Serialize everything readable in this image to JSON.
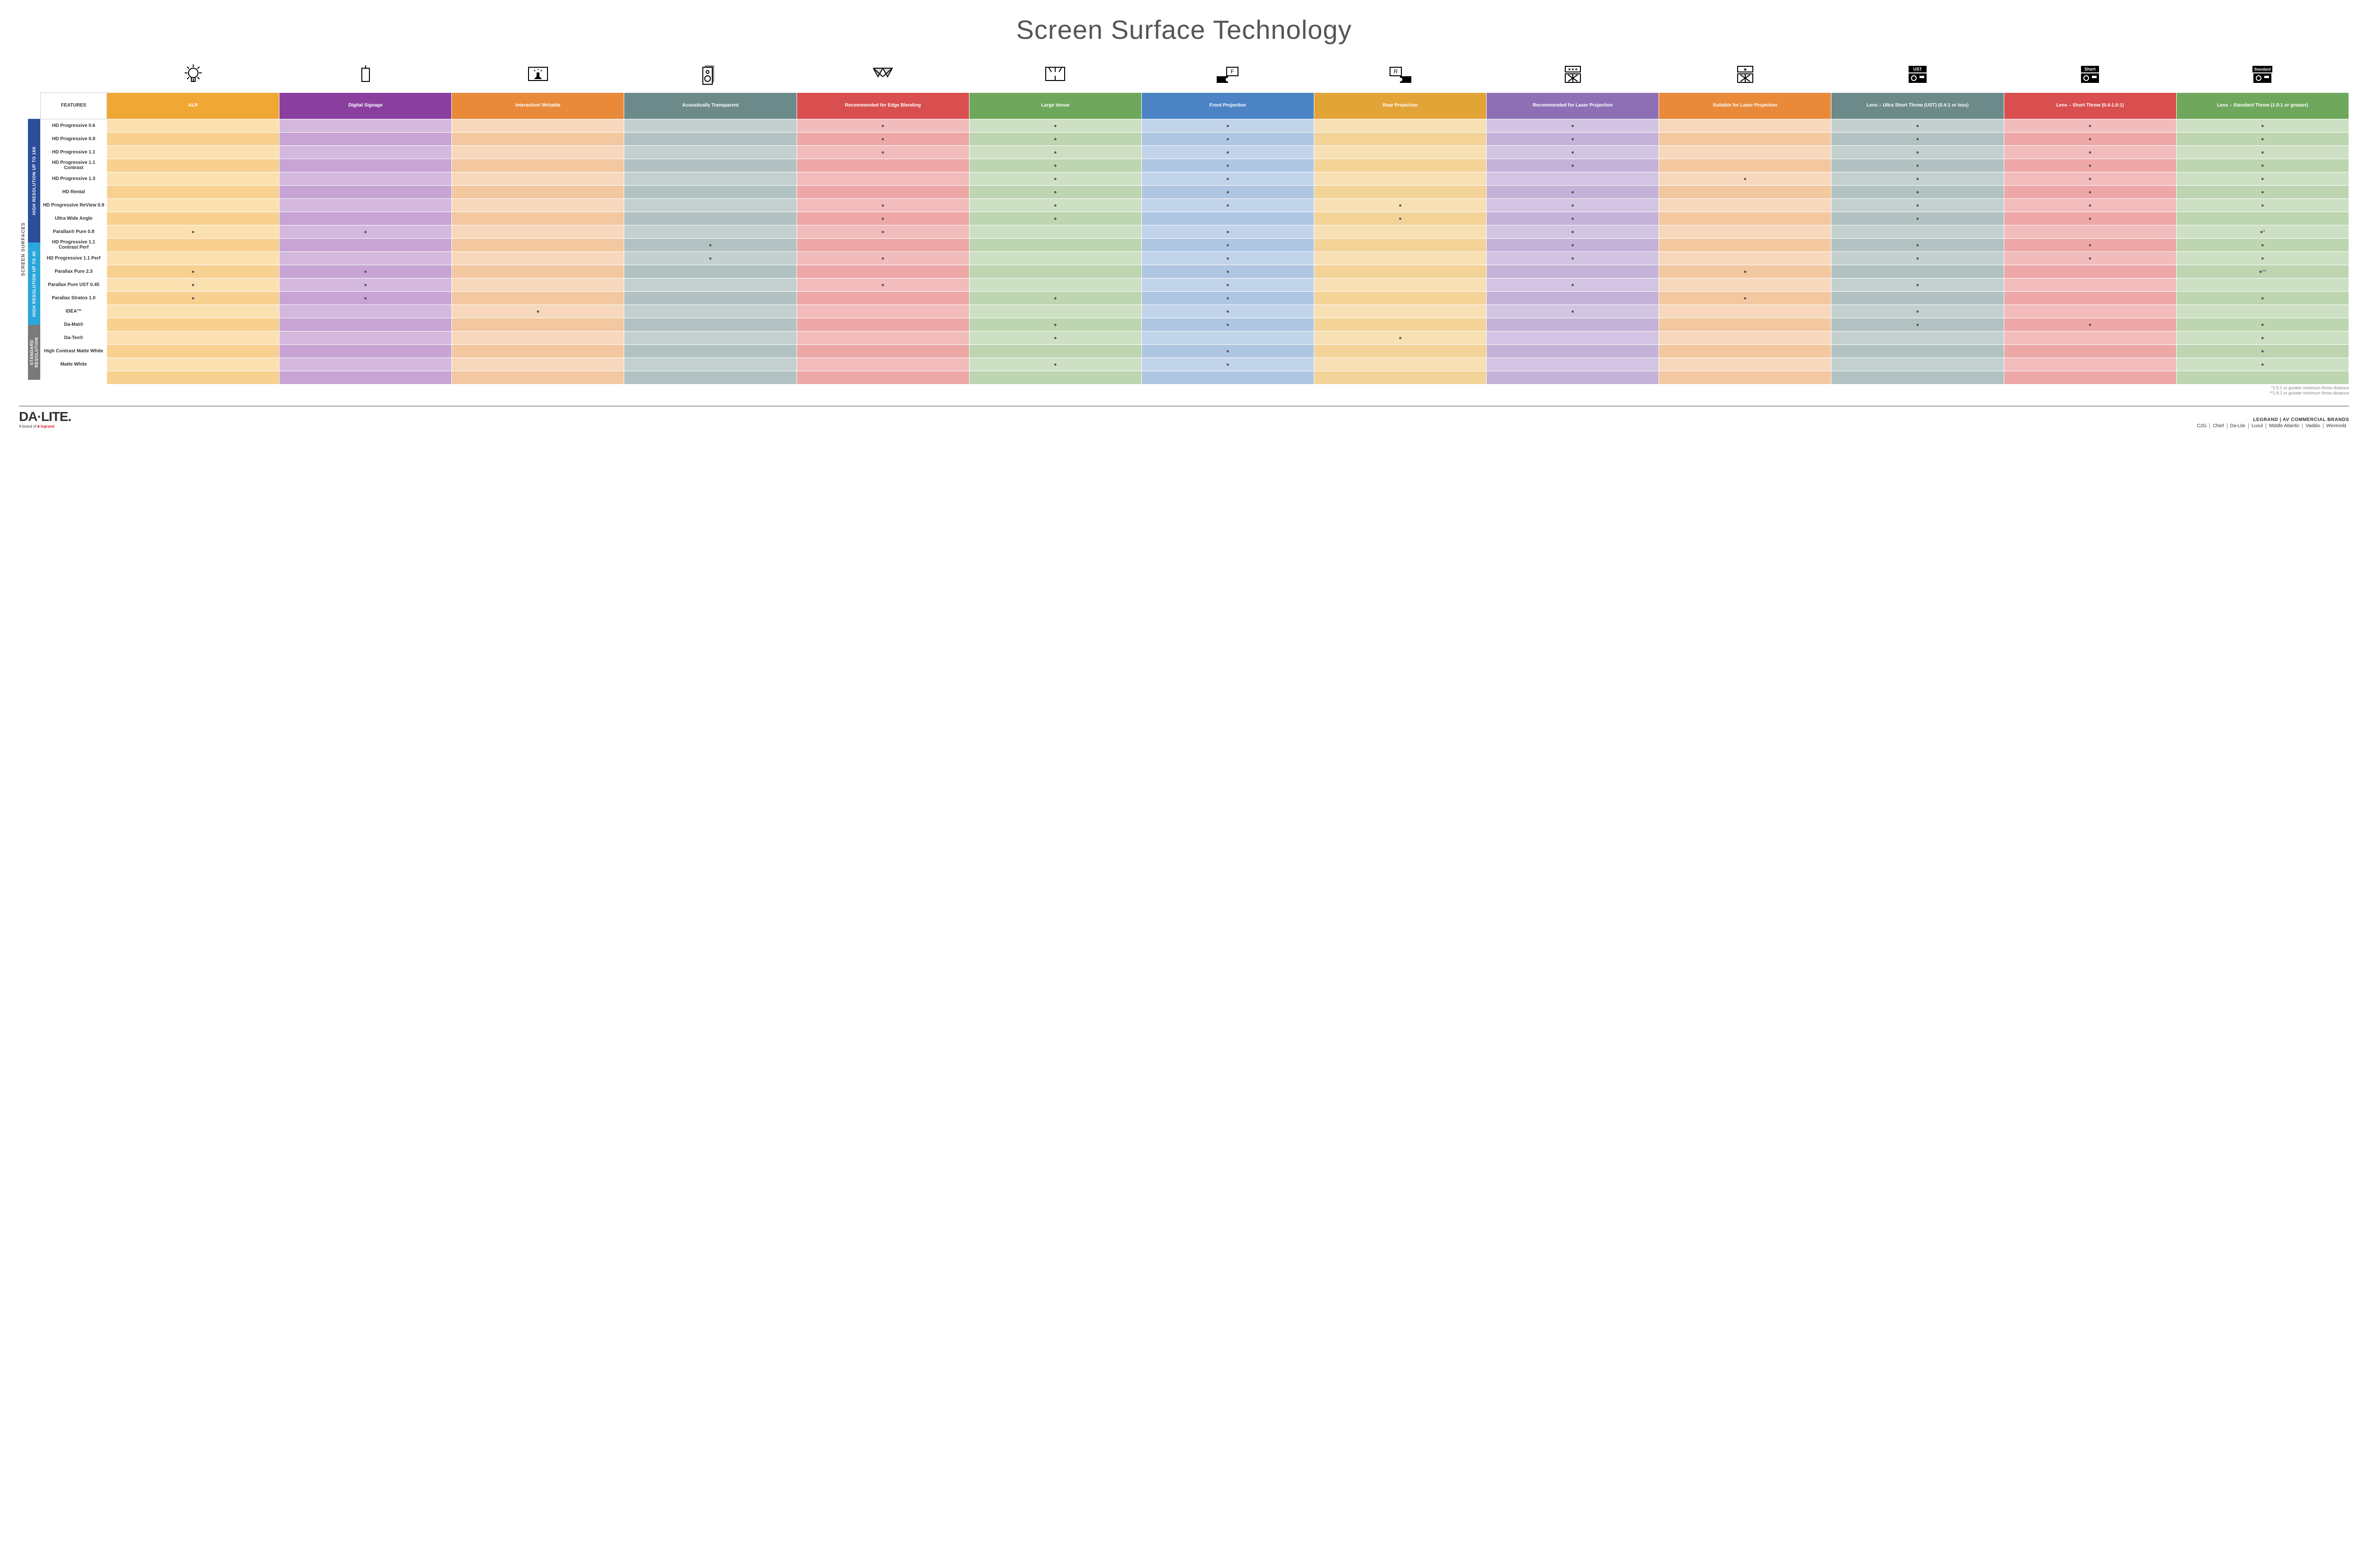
{
  "title": "Screen Surface Technology",
  "side_label": "SCREEN SURFACES",
  "groups": [
    {
      "name": "HIGH RESOLUTION UP TO 16K",
      "bg": "#2b4f9a",
      "rows": 9
    },
    {
      "name": "HIGH RESOLUTION UP TO 4K",
      "bg": "#2aa7d8",
      "rows": 6
    },
    {
      "name": "STANDARD RESOLUTION",
      "bg": "#7a7a7a",
      "rows": 4
    }
  ],
  "columns": [
    {
      "key": "features",
      "label": "FEATURES",
      "bg": "#ffffff",
      "icon": ""
    },
    {
      "key": "alr",
      "label": "ALR",
      "bg": "#f0a733",
      "icon": "bulb"
    },
    {
      "key": "signage",
      "label": "Digital Signage",
      "bg": "#8a3f9e",
      "icon": "signage"
    },
    {
      "key": "interactive",
      "label": "Interactive/ Writable",
      "bg": "#e88a3a",
      "icon": "touch"
    },
    {
      "key": "acoustic",
      "label": "Acoustically Transparent",
      "bg": "#6d8a8a",
      "icon": "speaker"
    },
    {
      "key": "blend",
      "label": "Recommended for Edge Blending",
      "bg": "#d94e4e",
      "icon": "blend"
    },
    {
      "key": "large",
      "label": "Large Venue",
      "bg": "#6fa85c",
      "icon": "venue"
    },
    {
      "key": "front",
      "label": "Front Projection",
      "bg": "#4b83c4",
      "icon": "front"
    },
    {
      "key": "rear",
      "label": "Rear Projection",
      "bg": "#e2a437",
      "icon": "rear"
    },
    {
      "key": "laser_rec",
      "label": "Recommended for Laser Projection",
      "bg": "#8e6fb5",
      "icon": "laser_rec"
    },
    {
      "key": "laser_suit",
      "label": "Suitable for Laser Projection",
      "bg": "#e88a3a",
      "icon": "laser_suit"
    },
    {
      "key": "ust",
      "label": "Lens – Ultra Short Throw (UST) (0.4:1 or less)",
      "bg": "#6d8a8a",
      "icon": "ust"
    },
    {
      "key": "short",
      "label": "Lens – Short Throw (0.4-1.0:1)",
      "bg": "#d94e4e",
      "icon": "short"
    },
    {
      "key": "std",
      "label": "Lens – Standard Throw (1.0:1 or greater)",
      "bg": "#6fa85c",
      "icon": "standard"
    }
  ],
  "tints": {
    "alr": [
      "#fbe0b0",
      "#f8d090"
    ],
    "signage": [
      "#d4b8dd",
      "#c7a4d3"
    ],
    "interactive": [
      "#f7d8bd",
      "#f3c7a0"
    ],
    "acoustic": [
      "#c4d0d0",
      "#b2c2c2"
    ],
    "blend": [
      "#f2bcbc",
      "#eda7a7"
    ],
    "large": [
      "#cde0c3",
      "#bdd5b0"
    ],
    "front": [
      "#c2d4ea",
      "#aec6e2"
    ],
    "rear": [
      "#f7e0b4",
      "#f3d398"
    ],
    "laser_rec": [
      "#d2c4e2",
      "#c4b2d8"
    ],
    "laser_suit": [
      "#f7d8bd",
      "#f3c7a0"
    ],
    "ust": [
      "#c4d0d0",
      "#b2c2c2"
    ],
    "short": [
      "#f2bcbc",
      "#eda7a7"
    ],
    "std": [
      "#cde0c3",
      "#bdd5b0"
    ]
  },
  "rows": [
    {
      "label": "HD Progressive 0.6",
      "dots": {
        "blend": "●",
        "large": "●",
        "front": "●",
        "laser_rec": "●",
        "ust": "●",
        "short": "●",
        "std": "●"
      }
    },
    {
      "label": "HD Progressive 0.9",
      "dots": {
        "blend": "●",
        "large": "●",
        "front": "●",
        "laser_rec": "●",
        "ust": "●",
        "short": "●",
        "std": "●"
      }
    },
    {
      "label": "HD Progressive 1.1",
      "dots": {
        "blend": "●",
        "large": "●",
        "front": "●",
        "laser_rec": "●",
        "ust": "●",
        "short": "●",
        "std": "●"
      }
    },
    {
      "label": "HD Progressive 1.1 Contrast",
      "dots": {
        "large": "●",
        "front": "●",
        "laser_rec": "●",
        "ust": "●",
        "short": "●",
        "std": "●"
      }
    },
    {
      "label": "HD Progressive 1.3",
      "dots": {
        "large": "●",
        "front": "●",
        "laser_suit": "●",
        "ust": "●",
        "short": "●",
        "std": "●"
      }
    },
    {
      "label": "HD Rental",
      "dots": {
        "large": "●",
        "front": "●",
        "laser_rec": "●",
        "ust": "●",
        "short": "●",
        "std": "●"
      }
    },
    {
      "label": "HD Progressive ReView 0.9",
      "dots": {
        "blend": "●",
        "large": "●",
        "front": "●",
        "rear": "●",
        "laser_rec": "●",
        "ust": "●",
        "short": "●",
        "std": "●"
      }
    },
    {
      "label": "Ultra Wide Angle",
      "dots": {
        "blend": "●",
        "large": "●",
        "rear": "●",
        "laser_rec": "●",
        "ust": "●",
        "short": "●"
      }
    },
    {
      "label": "Parallax® Pure 0.8",
      "dots": {
        "alr": "●",
        "signage": "●",
        "blend": "●",
        "front": "●",
        "laser_rec": "●",
        "std": "●*"
      }
    },
    {
      "label": "HD Progressive 1.1 Contrast Perf",
      "dots": {
        "acoustic": "●",
        "front": "●",
        "laser_rec": "●",
        "ust": "●",
        "short": "●",
        "std": "●"
      }
    },
    {
      "label": "HD Progressive 1.1 Perf",
      "dots": {
        "acoustic": "●",
        "blend": "●",
        "front": "●",
        "laser_rec": "●",
        "ust": "●",
        "short": "●",
        "std": "●"
      }
    },
    {
      "label": "Parallax Pure 2.3",
      "dots": {
        "alr": "●",
        "signage": "●",
        "front": "●",
        "laser_suit": "●",
        "std": "●**"
      }
    },
    {
      "label": "Parallax Pure UST 0.45",
      "dots": {
        "alr": "●",
        "signage": "●",
        "blend": "●",
        "front": "●",
        "laser_rec": "●",
        "ust": "●"
      }
    },
    {
      "label": "Parallax Stratos 1.0",
      "dots": {
        "alr": "●",
        "signage": "●",
        "large": "●",
        "front": "●",
        "laser_suit": "●",
        "std": "●"
      }
    },
    {
      "label": "IDEA™",
      "dots": {
        "interactive": "●",
        "front": "●",
        "laser_rec": "●",
        "ust": "●"
      }
    },
    {
      "label": "Da-Mat®",
      "dots": {
        "large": "●",
        "front": "●",
        "ust": "●",
        "short": "●",
        "std": "●"
      }
    },
    {
      "label": "Da-Tex®",
      "dots": {
        "large": "●",
        "rear": "●",
        "std": "●"
      }
    },
    {
      "label": "High Contrast Matte White",
      "dots": {
        "front": "●",
        "std": "●"
      }
    },
    {
      "label": "Matte White",
      "dots": {
        "large": "●",
        "front": "●",
        "std": "●"
      }
    }
  ],
  "footnotes": [
    "*1.5:1 or greater minimum throw distance",
    "**1.8:1 or greater minimum throw distance"
  ],
  "footer": {
    "logo_main": "DA·LITE.",
    "logo_sub_prefix": "A brand of ",
    "logo_sub_brand": "legrand",
    "brands_title": "LEGRAND | AV COMMERCIAL BRANDS",
    "brands": [
      "C2G",
      "Chief",
      "Da-Lite",
      "Luxul",
      "Middle Atlantic",
      "Vaddio",
      "Wiremold"
    ]
  },
  "icons_stroke": "#000000"
}
